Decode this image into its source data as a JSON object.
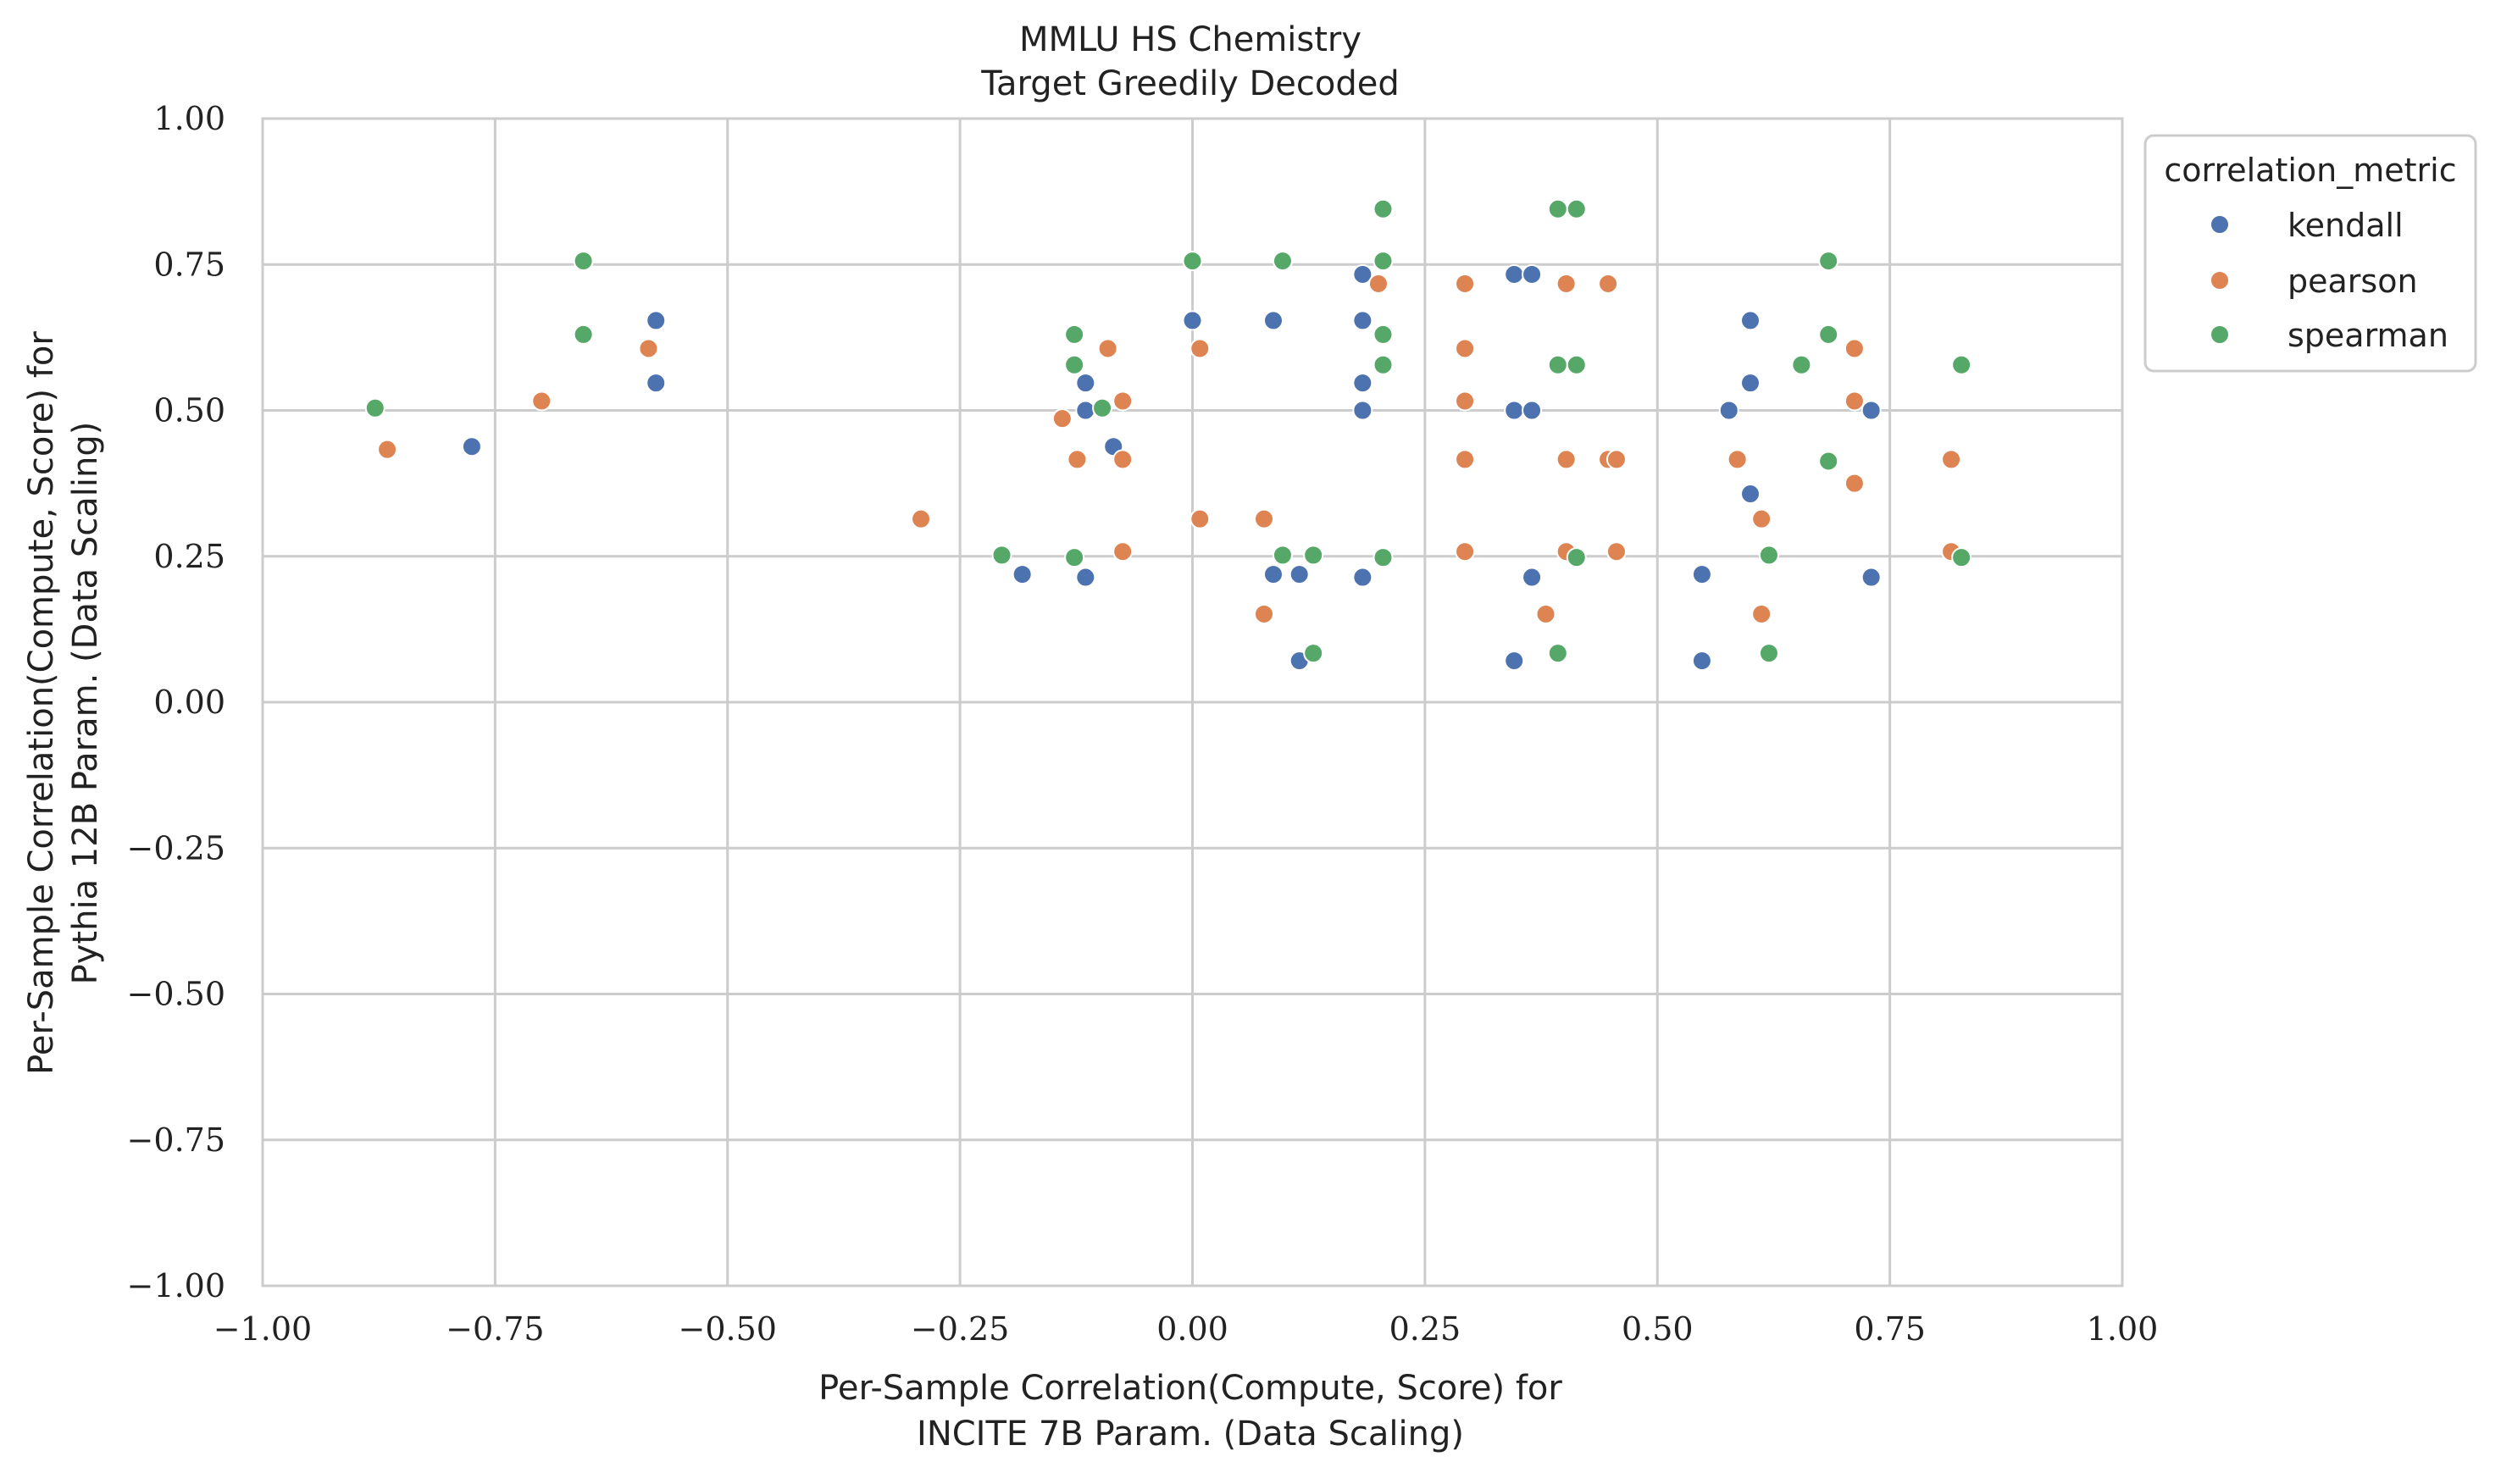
{
  "chart_data": {
    "type": "scatter",
    "title": "MMLU HS Chemistry",
    "subtitle": "Target Greedily Decoded",
    "xlabel": [
      "Per-Sample Correlation(Compute, Score) for",
      "INCITE 7B Param. (Data Scaling)"
    ],
    "ylabel": [
      "Per-Sample Correlation(Compute, Score) for",
      "Pythia 12B Param. (Data Scaling)"
    ],
    "xlim": [
      -1.0,
      1.0
    ],
    "ylim": [
      -1.0,
      1.0
    ],
    "xticks": [
      "-1.00",
      "-0.75",
      "-0.50",
      "-0.25",
      "0.00",
      "0.25",
      "0.50",
      "0.75",
      "1.00"
    ],
    "yticks": [
      "-1.00",
      "-0.75",
      "-0.50",
      "-0.25",
      "0.00",
      "0.25",
      "0.50",
      "0.75",
      "1.00"
    ],
    "xtick_values": [
      -1.0,
      -0.75,
      -0.5,
      -0.25,
      0.0,
      0.25,
      0.5,
      0.75,
      1.0
    ],
    "ytick_values": [
      -1.0,
      -0.75,
      -0.5,
      -0.25,
      0.0,
      0.25,
      0.5,
      0.75,
      1.0
    ],
    "grid": true,
    "legend": {
      "title": "correlation_metric",
      "placement": "outside-top-right"
    },
    "series": [
      {
        "name": "kendall",
        "color": "#4c72b0",
        "points": [
          [
            -0.775,
            0.438
          ],
          [
            -0.577,
            0.654
          ],
          [
            -0.577,
            0.547
          ],
          [
            -0.183,
            0.219
          ],
          [
            -0.115,
            0.547
          ],
          [
            -0.115,
            0.5
          ],
          [
            -0.115,
            0.214
          ],
          [
            -0.085,
            0.438
          ],
          [
            0.0,
            0.654
          ],
          [
            0.087,
            0.654
          ],
          [
            0.087,
            0.219
          ],
          [
            0.115,
            0.219
          ],
          [
            0.115,
            0.071
          ],
          [
            0.183,
            0.733
          ],
          [
            0.183,
            0.654
          ],
          [
            0.183,
            0.547
          ],
          [
            0.183,
            0.5
          ],
          [
            0.183,
            0.214
          ],
          [
            0.346,
            0.733
          ],
          [
            0.365,
            0.733
          ],
          [
            0.346,
            0.5
          ],
          [
            0.365,
            0.5
          ],
          [
            0.365,
            0.214
          ],
          [
            0.346,
            0.071
          ],
          [
            0.548,
            0.219
          ],
          [
            0.548,
            0.071
          ],
          [
            0.577,
            0.5
          ],
          [
            0.6,
            0.654
          ],
          [
            0.6,
            0.547
          ],
          [
            0.6,
            0.357
          ],
          [
            0.73,
            0.5
          ],
          [
            0.73,
            0.214
          ]
        ]
      },
      {
        "name": "pearson",
        "color": "#dd8452",
        "points": [
          [
            -0.866,
            0.433
          ],
          [
            -0.7,
            0.516
          ],
          [
            -0.585,
            0.606
          ],
          [
            -0.292,
            0.314
          ],
          [
            -0.14,
            0.486
          ],
          [
            -0.124,
            0.416
          ],
          [
            -0.091,
            0.606
          ],
          [
            -0.075,
            0.516
          ],
          [
            -0.075,
            0.416
          ],
          [
            -0.075,
            0.258
          ],
          [
            0.008,
            0.606
          ],
          [
            0.008,
            0.314
          ],
          [
            0.077,
            0.314
          ],
          [
            0.077,
            0.151
          ],
          [
            0.2,
            0.717
          ],
          [
            0.293,
            0.717
          ],
          [
            0.293,
            0.606
          ],
          [
            0.293,
            0.516
          ],
          [
            0.293,
            0.416
          ],
          [
            0.293,
            0.258
          ],
          [
            0.402,
            0.717
          ],
          [
            0.447,
            0.717
          ],
          [
            0.402,
            0.416
          ],
          [
            0.447,
            0.416
          ],
          [
            0.456,
            0.416
          ],
          [
            0.402,
            0.258
          ],
          [
            0.456,
            0.258
          ],
          [
            0.38,
            0.151
          ],
          [
            0.586,
            0.416
          ],
          [
            0.612,
            0.314
          ],
          [
            0.612,
            0.151
          ],
          [
            0.712,
            0.606
          ],
          [
            0.712,
            0.516
          ],
          [
            0.712,
            0.375
          ],
          [
            0.816,
            0.416
          ],
          [
            0.816,
            0.258
          ]
        ]
      },
      {
        "name": "spearman",
        "color": "#55a868",
        "points": [
          [
            -0.879,
            0.504
          ],
          [
            -0.655,
            0.756
          ],
          [
            -0.655,
            0.63
          ],
          [
            -0.205,
            0.252
          ],
          [
            -0.127,
            0.63
          ],
          [
            -0.127,
            0.578
          ],
          [
            -0.127,
            0.248
          ],
          [
            -0.097,
            0.504
          ],
          [
            0.0,
            0.756
          ],
          [
            0.097,
            0.756
          ],
          [
            0.097,
            0.252
          ],
          [
            0.13,
            0.252
          ],
          [
            0.13,
            0.084
          ],
          [
            0.205,
            0.845
          ],
          [
            0.205,
            0.756
          ],
          [
            0.205,
            0.63
          ],
          [
            0.205,
            0.578
          ],
          [
            0.205,
            0.248
          ],
          [
            0.393,
            0.845
          ],
          [
            0.413,
            0.845
          ],
          [
            0.393,
            0.578
          ],
          [
            0.413,
            0.578
          ],
          [
            0.413,
            0.248
          ],
          [
            0.393,
            0.084
          ],
          [
            0.62,
            0.252
          ],
          [
            0.62,
            0.084
          ],
          [
            0.655,
            0.578
          ],
          [
            0.684,
            0.756
          ],
          [
            0.684,
            0.63
          ],
          [
            0.684,
            0.413
          ],
          [
            0.827,
            0.578
          ],
          [
            0.827,
            0.248
          ]
        ]
      }
    ]
  }
}
